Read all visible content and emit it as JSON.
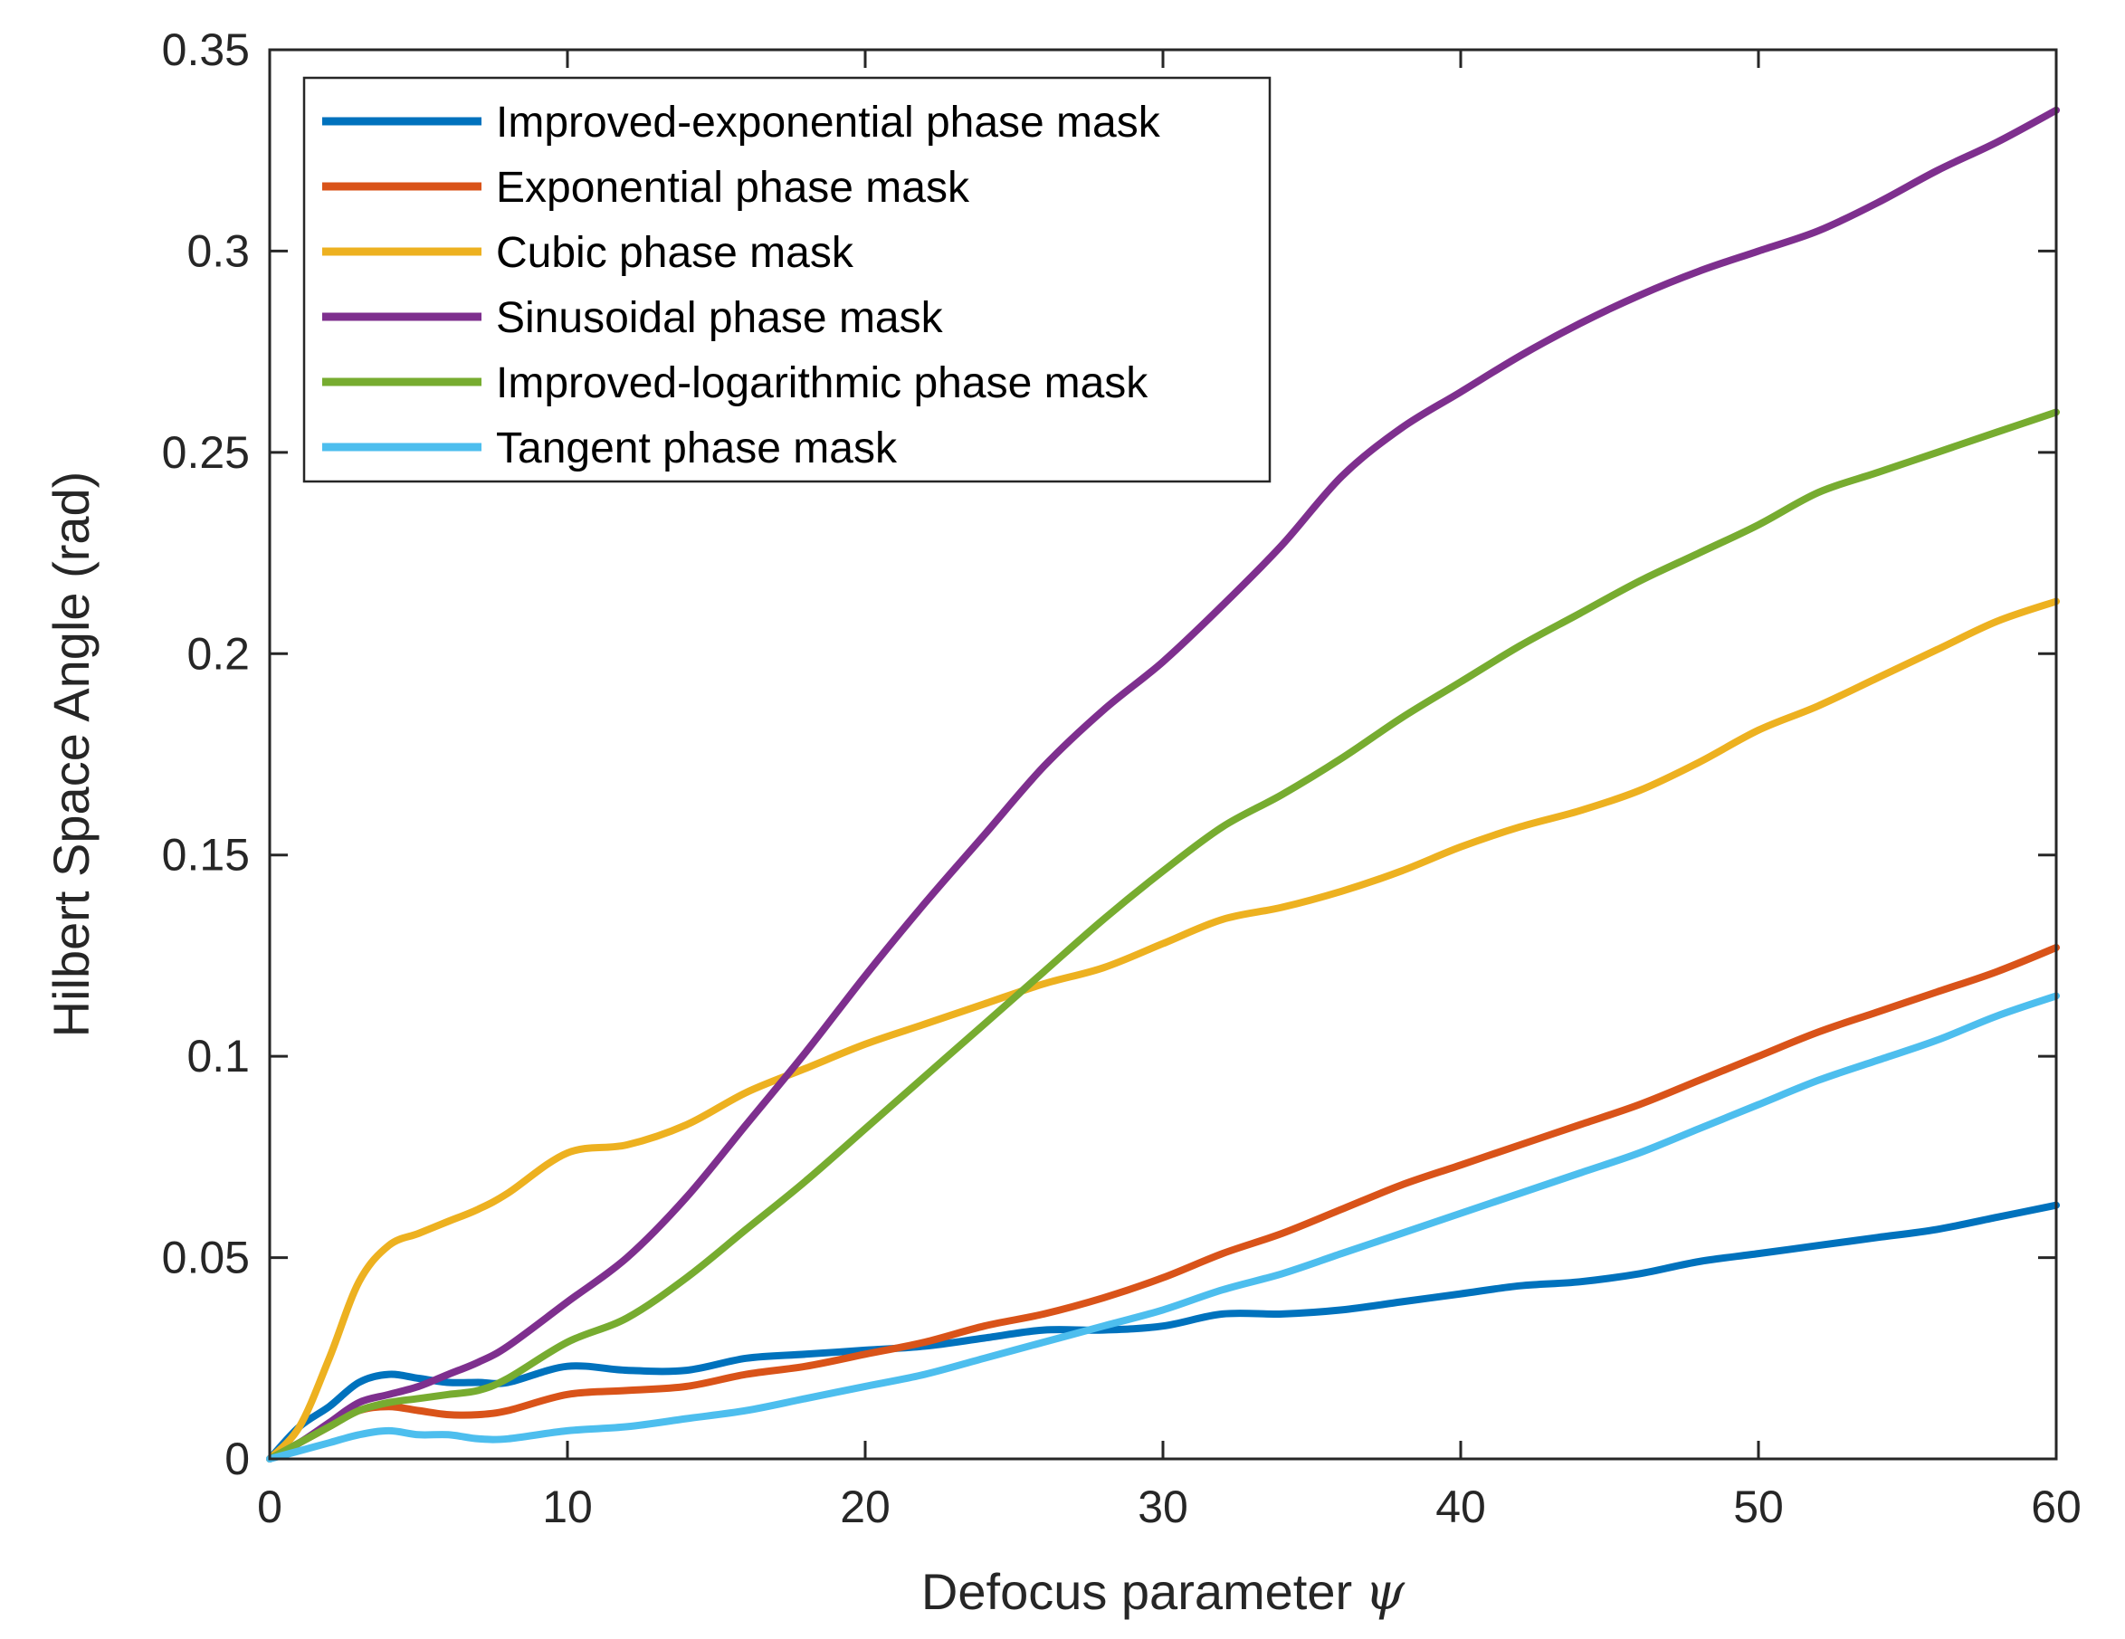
{
  "chart_data": {
    "type": "line",
    "title": "",
    "xlabel": "Defocus parameter",
    "xlabel_symbol": "ψ",
    "ylabel": "Hilbert Space Angle (rad)",
    "xlim": [
      0,
      60
    ],
    "ylim": [
      0,
      0.35
    ],
    "xticks": [
      0,
      10,
      20,
      30,
      40,
      50,
      60
    ],
    "xtick_labels": [
      "0",
      "10",
      "20",
      "30",
      "40",
      "50",
      "60"
    ],
    "yticks": [
      0,
      0.05,
      0.1,
      0.15,
      0.2,
      0.25,
      0.3,
      0.35
    ],
    "ytick_labels": [
      "0",
      "0.05",
      "0.1",
      "0.15",
      "0.2",
      "0.25",
      "0.3",
      "0.35"
    ],
    "grid": false,
    "legend_position": "top-left",
    "x": [
      0,
      1,
      2,
      3,
      4,
      5,
      6,
      7,
      8,
      10,
      12,
      14,
      16,
      18,
      20,
      22,
      24,
      26,
      28,
      30,
      32,
      34,
      36,
      38,
      40,
      42,
      44,
      46,
      48,
      50,
      52,
      54,
      56,
      58,
      60
    ],
    "series": [
      {
        "name": "Improved-exponential phase mask",
        "color": "#0072BD",
        "values": [
          0,
          0.008,
          0.013,
          0.019,
          0.021,
          0.02,
          0.019,
          0.019,
          0.019,
          0.023,
          0.022,
          0.022,
          0.025,
          0.026,
          0.027,
          0.028,
          0.03,
          0.032,
          0.032,
          0.033,
          0.036,
          0.036,
          0.037,
          0.039,
          0.041,
          0.043,
          0.044,
          0.046,
          0.049,
          0.051,
          0.053,
          0.055,
          0.057,
          0.06,
          0.063
        ]
      },
      {
        "name": "Exponential phase mask",
        "color": "#D95319",
        "values": [
          0,
          0.004,
          0.008,
          0.012,
          0.013,
          0.012,
          0.011,
          0.011,
          0.012,
          0.016,
          0.017,
          0.018,
          0.021,
          0.023,
          0.026,
          0.029,
          0.033,
          0.036,
          0.04,
          0.045,
          0.051,
          0.056,
          0.062,
          0.068,
          0.073,
          0.078,
          0.083,
          0.088,
          0.094,
          0.1,
          0.106,
          0.111,
          0.116,
          0.121,
          0.127
        ]
      },
      {
        "name": "Cubic phase mask",
        "color": "#EDB120",
        "values": [
          0,
          0.008,
          0.025,
          0.044,
          0.053,
          0.056,
          0.059,
          0.062,
          0.066,
          0.076,
          0.078,
          0.083,
          0.091,
          0.097,
          0.103,
          0.108,
          0.113,
          0.118,
          0.122,
          0.128,
          0.134,
          0.137,
          0.141,
          0.146,
          0.152,
          0.157,
          0.161,
          0.166,
          0.173,
          0.181,
          0.187,
          0.194,
          0.201,
          0.208,
          0.213
        ]
      },
      {
        "name": "Sinusoidal phase mask",
        "color": "#7E2F8E",
        "values": [
          0,
          0.004,
          0.009,
          0.014,
          0.016,
          0.018,
          0.021,
          0.024,
          0.028,
          0.039,
          0.05,
          0.065,
          0.083,
          0.101,
          0.12,
          0.138,
          0.155,
          0.172,
          0.186,
          0.198,
          0.212,
          0.227,
          0.244,
          0.256,
          0.265,
          0.274,
          0.282,
          0.289,
          0.295,
          0.3,
          0.305,
          0.312,
          0.32,
          0.327,
          0.335
        ]
      },
      {
        "name": "Improved-logarithmic phase mask",
        "color": "#77AC30",
        "values": [
          0,
          0.004,
          0.008,
          0.012,
          0.014,
          0.015,
          0.016,
          0.017,
          0.02,
          0.029,
          0.035,
          0.045,
          0.057,
          0.069,
          0.082,
          0.095,
          0.108,
          0.121,
          0.134,
          0.146,
          0.157,
          0.165,
          0.174,
          0.184,
          0.193,
          0.202,
          0.21,
          0.218,
          0.225,
          0.232,
          0.24,
          0.245,
          0.25,
          0.255,
          0.26
        ]
      },
      {
        "name": "Tangent phase mask",
        "color": "#4DBEEE",
        "values": [
          0,
          0.002,
          0.004,
          0.006,
          0.007,
          0.006,
          0.006,
          0.005,
          0.005,
          0.007,
          0.008,
          0.01,
          0.012,
          0.015,
          0.018,
          0.021,
          0.025,
          0.029,
          0.033,
          0.037,
          0.042,
          0.046,
          0.051,
          0.056,
          0.061,
          0.066,
          0.071,
          0.076,
          0.082,
          0.088,
          0.094,
          0.099,
          0.104,
          0.11,
          0.115
        ]
      }
    ]
  }
}
